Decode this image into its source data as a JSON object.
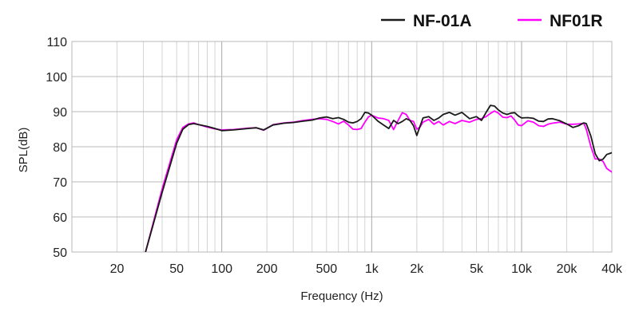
{
  "chart_data": {
    "type": "line",
    "title": "",
    "xlabel": "Frequency (Hz)",
    "ylabel": "SPL(dB)",
    "x_scale": "log",
    "xlim": [
      10,
      40000
    ],
    "ylim": [
      50,
      110
    ],
    "grid": true,
    "legend_position": "top-right",
    "x_ticks": [
      {
        "value": 20,
        "label": "20"
      },
      {
        "value": 50,
        "label": "50"
      },
      {
        "value": 100,
        "label": "100"
      },
      {
        "value": 200,
        "label": "200"
      },
      {
        "value": 500,
        "label": "500"
      },
      {
        "value": 1000,
        "label": "1k"
      },
      {
        "value": 2000,
        "label": "2k"
      },
      {
        "value": 5000,
        "label": "5k"
      },
      {
        "value": 10000,
        "label": "10k"
      },
      {
        "value": 20000,
        "label": "20k"
      },
      {
        "value": 40000,
        "label": "40k"
      }
    ],
    "y_ticks": [
      50,
      60,
      70,
      80,
      90,
      100,
      110
    ],
    "series": [
      {
        "name": "NF-01A",
        "color": "#1a1a1a",
        "points": [
          [
            31,
            50
          ],
          [
            40,
            67
          ],
          [
            50,
            81
          ],
          [
            55,
            85
          ],
          [
            60,
            86.3
          ],
          [
            65,
            86.6
          ],
          [
            70,
            86.3
          ],
          [
            80,
            85.8
          ],
          [
            90,
            85.2
          ],
          [
            100,
            84.6
          ],
          [
            120,
            84.8
          ],
          [
            150,
            85.2
          ],
          [
            170,
            85.4
          ],
          [
            190,
            84.8
          ],
          [
            220,
            86.2
          ],
          [
            260,
            86.7
          ],
          [
            300,
            86.9
          ],
          [
            350,
            87.3
          ],
          [
            400,
            87.6
          ],
          [
            450,
            88.2
          ],
          [
            500,
            88.5
          ],
          [
            550,
            88.0
          ],
          [
            600,
            88.3
          ],
          [
            650,
            87.8
          ],
          [
            700,
            87.0
          ],
          [
            750,
            86.8
          ],
          [
            800,
            87.2
          ],
          [
            850,
            88.0
          ],
          [
            900,
            89.8
          ],
          [
            950,
            89.6
          ],
          [
            1000,
            89.0
          ],
          [
            1100,
            87.3
          ],
          [
            1200,
            86.2
          ],
          [
            1300,
            85.2
          ],
          [
            1400,
            87.5
          ],
          [
            1500,
            86.6
          ],
          [
            1600,
            87.2
          ],
          [
            1700,
            88.0
          ],
          [
            1800,
            87.5
          ],
          [
            1900,
            86.0
          ],
          [
            2000,
            83.2
          ],
          [
            2100,
            85.8
          ],
          [
            2200,
            88.2
          ],
          [
            2400,
            88.6
          ],
          [
            2600,
            87.5
          ],
          [
            2800,
            88.2
          ],
          [
            3000,
            89.2
          ],
          [
            3300,
            89.8
          ],
          [
            3600,
            89.0
          ],
          [
            4000,
            89.8
          ],
          [
            4500,
            88.0
          ],
          [
            5000,
            88.6
          ],
          [
            5400,
            87.5
          ],
          [
            5800,
            89.8
          ],
          [
            6200,
            91.8
          ],
          [
            6600,
            91.6
          ],
          [
            7000,
            90.5
          ],
          [
            7500,
            89.6
          ],
          [
            8000,
            89.2
          ],
          [
            8500,
            89.6
          ],
          [
            9000,
            89.7
          ],
          [
            9500,
            88.8
          ],
          [
            10000,
            88.2
          ],
          [
            11000,
            88.3
          ],
          [
            12000,
            88.1
          ],
          [
            13000,
            87.3
          ],
          [
            14000,
            87.2
          ],
          [
            15000,
            87.9
          ],
          [
            16000,
            88.0
          ],
          [
            18000,
            87.4
          ],
          [
            20000,
            86.5
          ],
          [
            22000,
            85.5
          ],
          [
            24000,
            86.0
          ],
          [
            26000,
            86.8
          ],
          [
            27000,
            86.6
          ],
          [
            29000,
            83.0
          ],
          [
            31000,
            78.0
          ],
          [
            33000,
            76.0
          ],
          [
            35000,
            76.5
          ],
          [
            37000,
            77.8
          ],
          [
            40000,
            78.3
          ],
          [
            43000,
            77.6
          ]
        ]
      },
      {
        "name": "NF01R",
        "color": "#ff00ff",
        "points": [
          [
            31,
            50
          ],
          [
            40,
            68
          ],
          [
            50,
            82
          ],
          [
            55,
            85.5
          ],
          [
            60,
            86.5
          ],
          [
            65,
            86.8
          ],
          [
            70,
            86.3
          ],
          [
            80,
            85.6
          ],
          [
            90,
            85.1
          ],
          [
            100,
            84.8
          ],
          [
            120,
            84.9
          ],
          [
            150,
            85.3
          ],
          [
            170,
            85.4
          ],
          [
            190,
            84.7
          ],
          [
            220,
            86.3
          ],
          [
            260,
            86.8
          ],
          [
            300,
            87.0
          ],
          [
            350,
            87.5
          ],
          [
            400,
            87.8
          ],
          [
            450,
            88.0
          ],
          [
            500,
            87.8
          ],
          [
            550,
            87.2
          ],
          [
            600,
            86.5
          ],
          [
            650,
            87.3
          ],
          [
            700,
            86.2
          ],
          [
            750,
            85.0
          ],
          [
            800,
            84.9
          ],
          [
            850,
            85.2
          ],
          [
            900,
            87.0
          ],
          [
            950,
            88.5
          ],
          [
            1000,
            89.0
          ],
          [
            1100,
            88.2
          ],
          [
            1200,
            88.0
          ],
          [
            1300,
            87.5
          ],
          [
            1400,
            84.9
          ],
          [
            1500,
            87.5
          ],
          [
            1600,
            89.7
          ],
          [
            1700,
            89.2
          ],
          [
            1800,
            87.5
          ],
          [
            1900,
            87.2
          ],
          [
            2000,
            85.0
          ],
          [
            2100,
            85.6
          ],
          [
            2200,
            87.0
          ],
          [
            2400,
            87.8
          ],
          [
            2600,
            86.4
          ],
          [
            2800,
            87.2
          ],
          [
            3000,
            86.2
          ],
          [
            3300,
            87.2
          ],
          [
            3600,
            86.6
          ],
          [
            4000,
            87.5
          ],
          [
            4500,
            87.0
          ],
          [
            5000,
            87.8
          ],
          [
            5400,
            88.0
          ],
          [
            5800,
            88.6
          ],
          [
            6200,
            89.5
          ],
          [
            6600,
            90.2
          ],
          [
            7000,
            89.6
          ],
          [
            7500,
            88.4
          ],
          [
            8000,
            88.3
          ],
          [
            8500,
            88.8
          ],
          [
            9000,
            87.6
          ],
          [
            9500,
            86.2
          ],
          [
            10000,
            86.0
          ],
          [
            11000,
            87.4
          ],
          [
            12000,
            87.0
          ],
          [
            13000,
            86.0
          ],
          [
            14000,
            85.8
          ],
          [
            15000,
            86.4
          ],
          [
            16000,
            86.7
          ],
          [
            18000,
            87.0
          ],
          [
            20000,
            86.4
          ],
          [
            22000,
            86.4
          ],
          [
            24000,
            86.5
          ],
          [
            26000,
            86.7
          ],
          [
            27000,
            85.0
          ],
          [
            29000,
            80.0
          ],
          [
            31000,
            76.5
          ],
          [
            33000,
            76.5
          ],
          [
            35000,
            75.8
          ],
          [
            37000,
            73.8
          ],
          [
            40000,
            72.8
          ],
          [
            43000,
            72.5
          ]
        ]
      }
    ]
  }
}
